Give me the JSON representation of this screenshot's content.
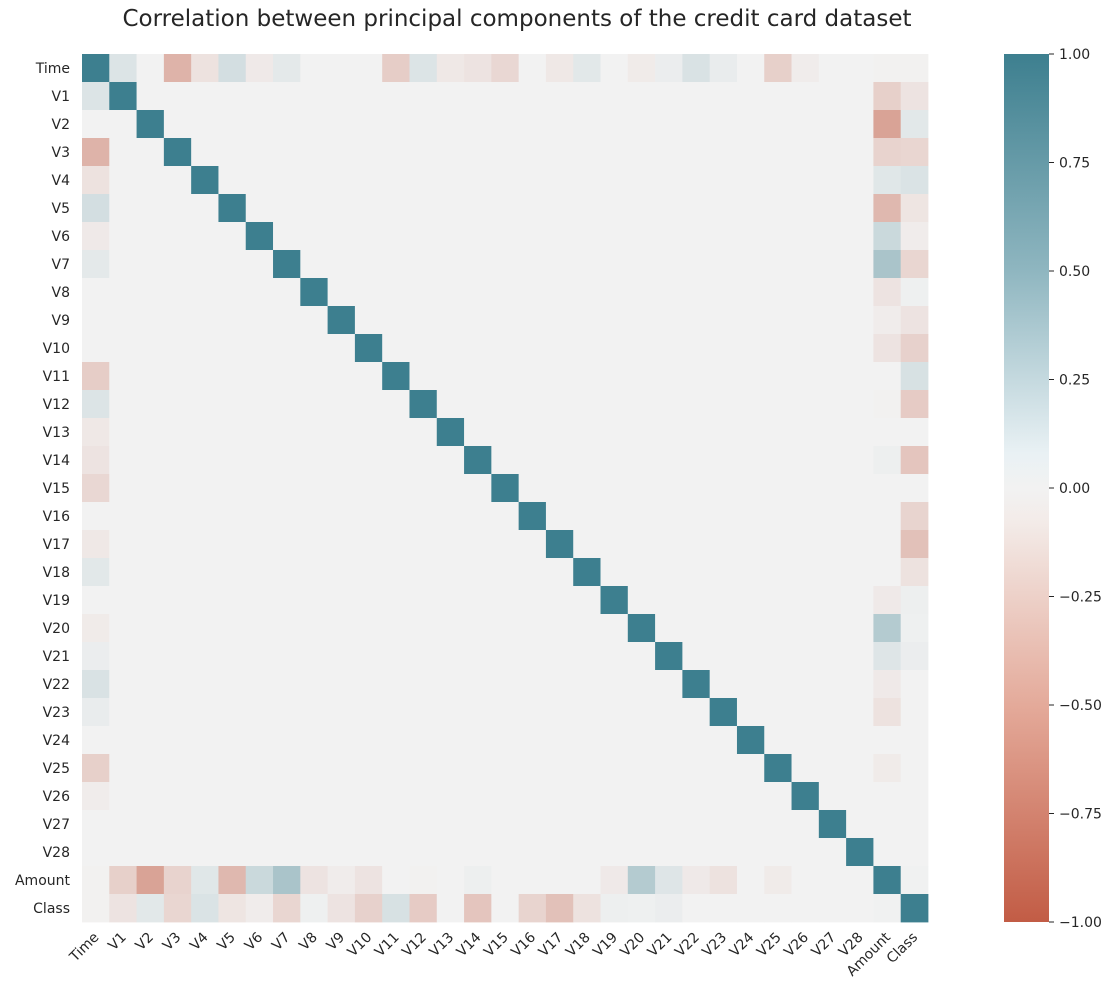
{
  "chart_data": {
    "type": "heatmap",
    "title": "Correlation between principal components of the credit card dataset",
    "labels": [
      "Time",
      "V1",
      "V2",
      "V3",
      "V4",
      "V5",
      "V6",
      "V7",
      "V8",
      "V9",
      "V10",
      "V11",
      "V12",
      "V13",
      "V14",
      "V15",
      "V16",
      "V17",
      "V18",
      "V19",
      "V20",
      "V21",
      "V22",
      "V23",
      "V24",
      "V25",
      "V26",
      "V27",
      "V28",
      "Amount",
      "Class"
    ],
    "time_corr": [
      1.0,
      0.12,
      0.0,
      -0.42,
      -0.11,
      0.17,
      -0.06,
      0.08,
      0.0,
      0.0,
      0.0,
      -0.25,
      0.12,
      -0.07,
      -0.1,
      -0.18,
      0.0,
      -0.07,
      0.09,
      0.0,
      -0.05,
      0.04,
      0.14,
      0.05,
      0.0,
      -0.23,
      -0.04,
      0.0,
      0.0,
      -0.01,
      -0.01
    ],
    "amount_corr": [
      -0.01,
      -0.23,
      -0.53,
      -0.21,
      0.1,
      -0.39,
      0.22,
      0.4,
      -0.1,
      -0.04,
      -0.1,
      0.0,
      -0.01,
      0.0,
      0.03,
      0.0,
      0.0,
      0.0,
      0.0,
      -0.06,
      0.34,
      0.11,
      -0.06,
      -0.11,
      0.0,
      -0.05,
      0.0,
      0.0,
      0.0,
      1.0,
      0.01
    ],
    "class_corr": [
      -0.01,
      -0.1,
      0.09,
      -0.19,
      0.13,
      -0.09,
      -0.04,
      -0.19,
      0.02,
      -0.1,
      -0.22,
      0.15,
      -0.26,
      0.0,
      -0.3,
      0.0,
      -0.2,
      -0.33,
      -0.11,
      0.03,
      0.02,
      0.04,
      0.0,
      0.0,
      0.0,
      0.0,
      0.0,
      0.0,
      0.0,
      0.01,
      1.0
    ],
    "colorbar": {
      "min": -1.0,
      "max": 1.0,
      "ticks": [
        "1.00",
        "0.75",
        "0.50",
        "0.25",
        "0.00",
        "−0.25",
        "−0.50",
        "−0.75",
        "−1.00"
      ]
    },
    "colormap": {
      "negative": "#c25c45",
      "neutral": "#f2f2f2",
      "positive": "#3d7f8f"
    },
    "xlabel": "",
    "ylabel": "",
    "grid": false
  }
}
